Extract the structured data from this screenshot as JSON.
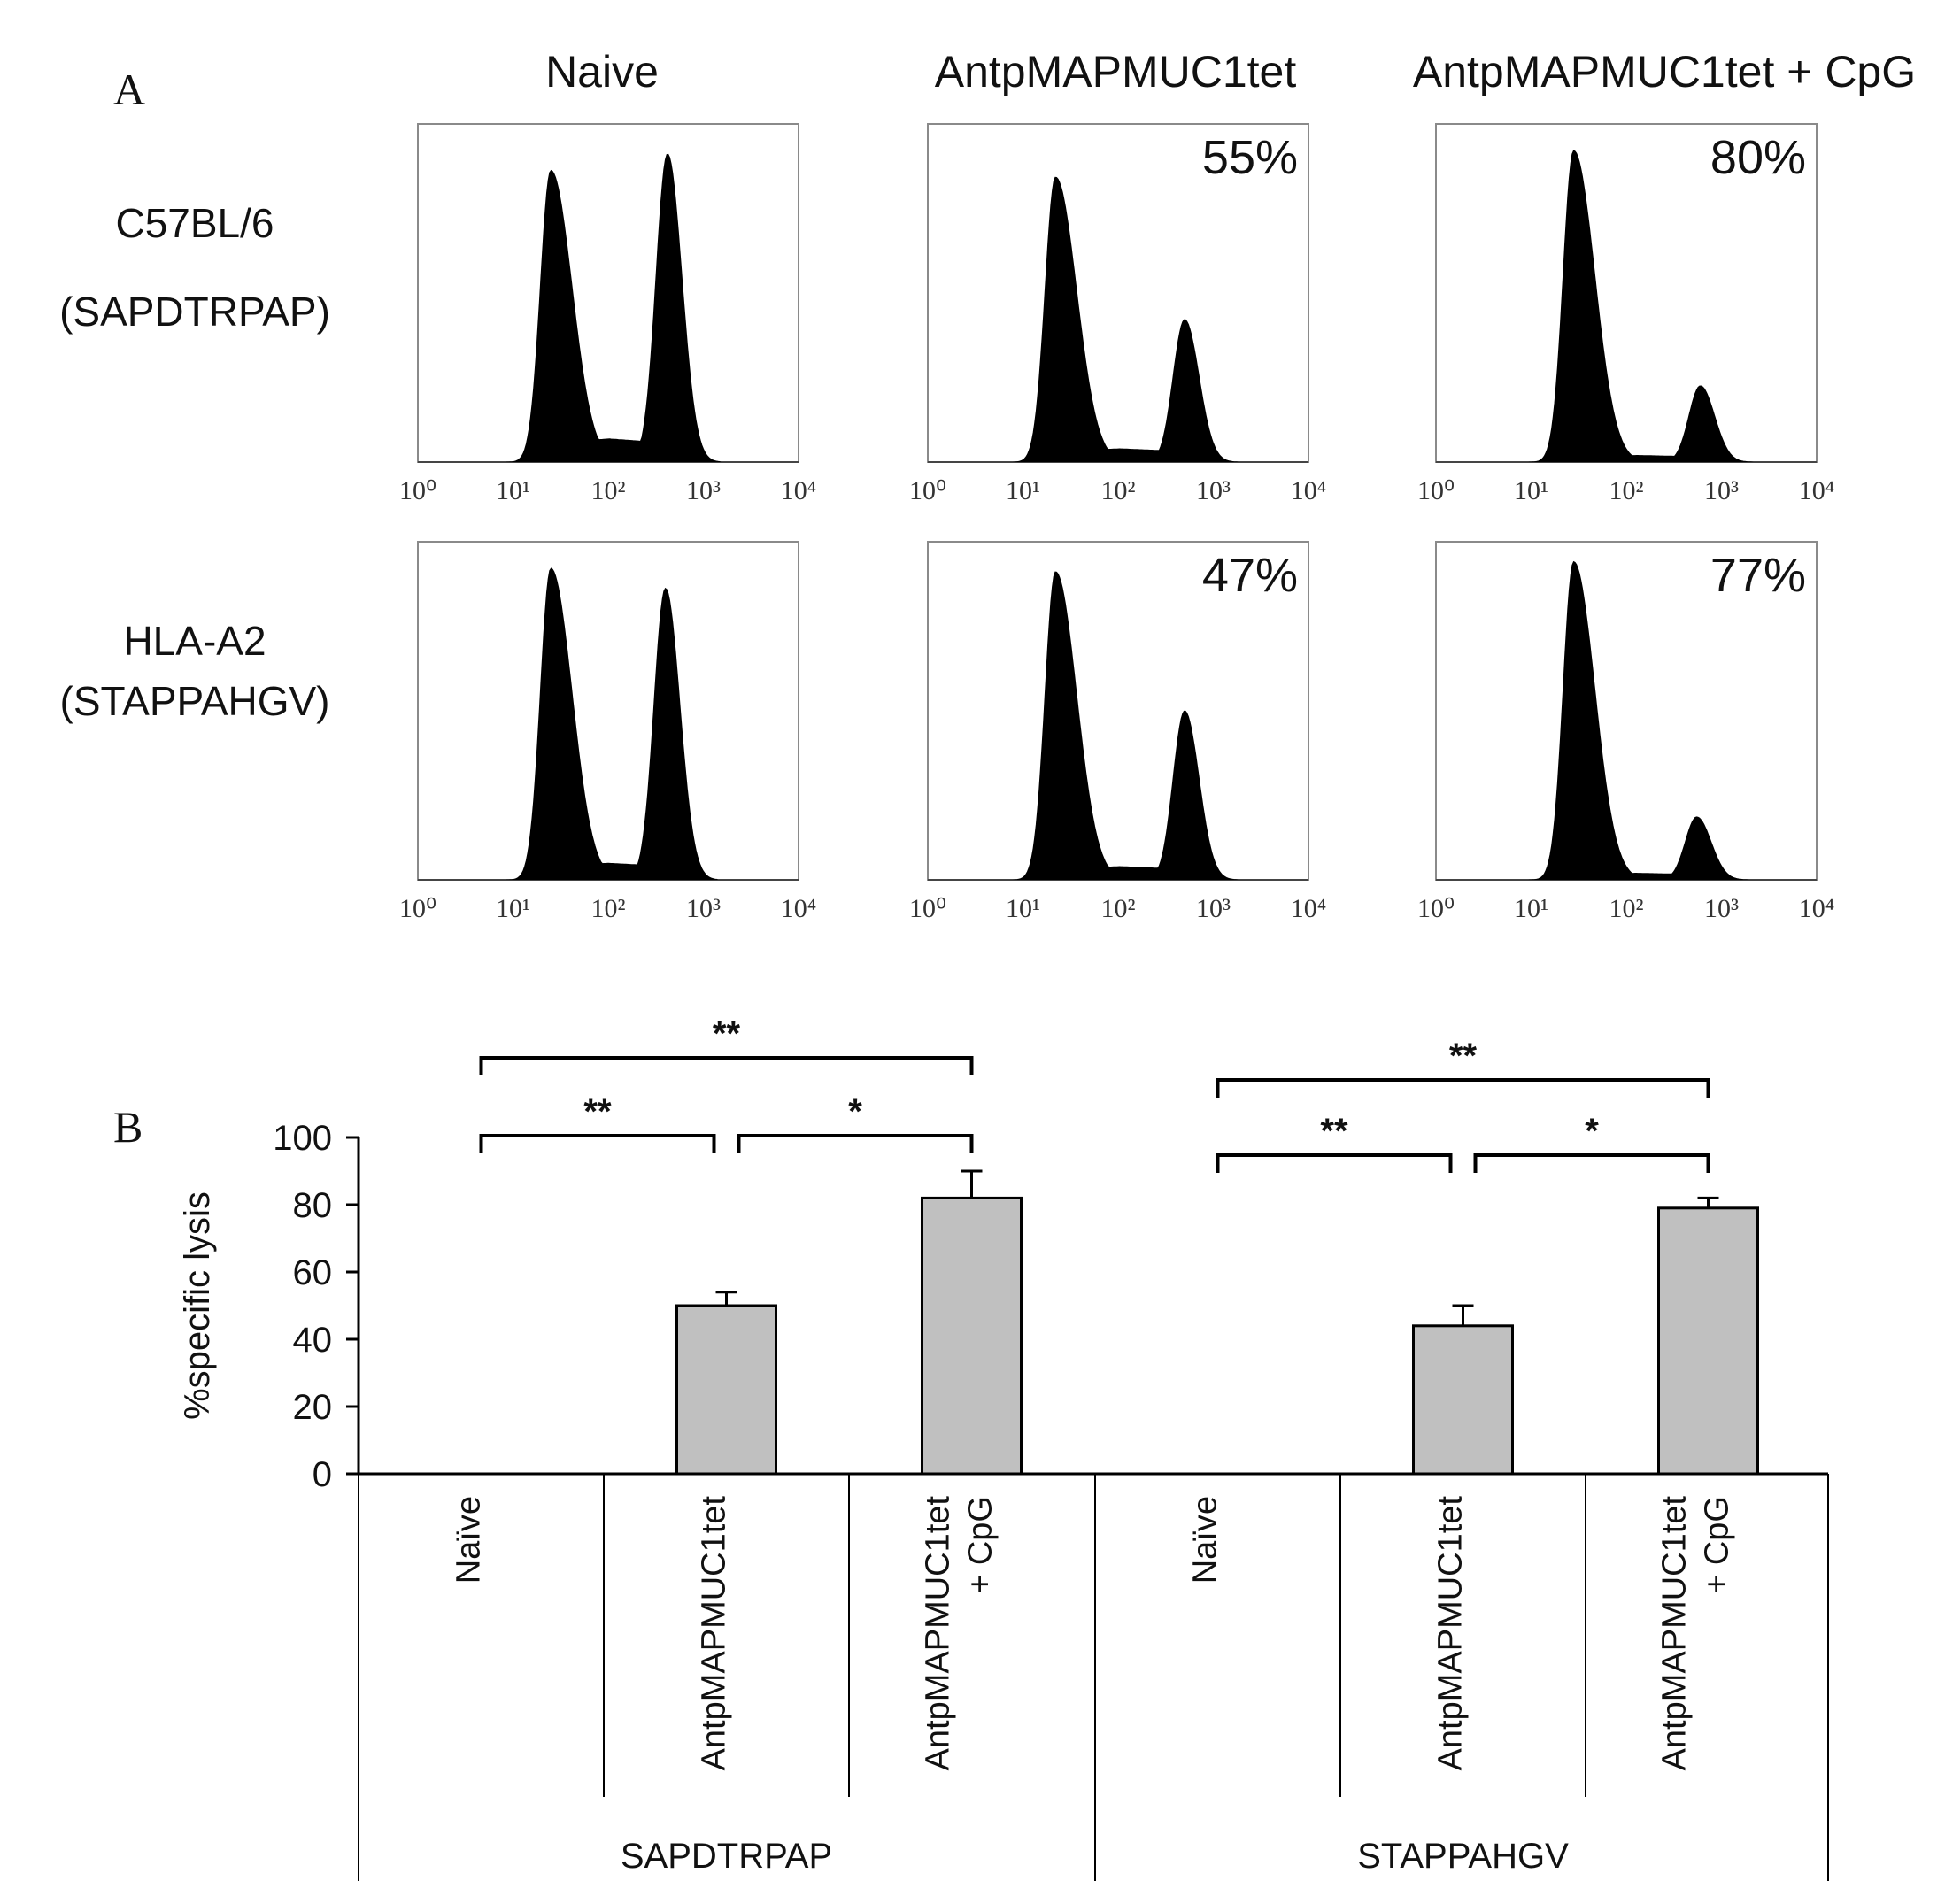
{
  "panel_a": {
    "label": "A",
    "column_titles": [
      "Naive",
      "AntpMAPMUC1tet",
      "AntpMAPMUC1tet + CpG"
    ],
    "row_titles": [
      [
        "C57BL/6",
        "(SAPDTRPAP)"
      ],
      [
        "HLA-A2",
        "(STAPPAHGV)"
      ]
    ],
    "axis_tick_labels": [
      "10⁰",
      "10¹",
      "10²",
      "10³",
      "10⁴"
    ],
    "percent_labels": [
      [
        "",
        "55%",
        "80%"
      ],
      [
        "",
        "47%",
        "77%"
      ]
    ]
  },
  "panel_b": {
    "label": "B",
    "significance": {
      "double": "**",
      "single": "*"
    }
  },
  "chart_data": [
    {
      "type": "area",
      "description_scale": "log",
      "xlim": [
        1,
        10000
      ],
      "x_ticks": [
        "10⁰",
        "10¹",
        "10²",
        "10³",
        "10⁴"
      ],
      "panels": [
        {
          "row": "C57BL/6 (SAPDTRPAP)",
          "column": "Naive",
          "label": "",
          "peaks": [
            {
              "x": 25,
              "height": 0.88
            },
            {
              "x": 420,
              "height": 0.93
            }
          ],
          "valley": 0.07
        },
        {
          "row": "C57BL/6 (SAPDTRPAP)",
          "column": "AntpMAPMUC1tet",
          "label": "55%",
          "peaks": [
            {
              "x": 22,
              "height": 0.86
            },
            {
              "x": 500,
              "height": 0.43
            }
          ],
          "valley": 0.04
        },
        {
          "row": "C57BL/6 (SAPDTRPAP)",
          "column": "AntpMAPMUC1tet + CpG",
          "label": "80%",
          "peaks": [
            {
              "x": 28,
              "height": 0.94
            },
            {
              "x": 600,
              "height": 0.23
            }
          ],
          "valley": 0.02
        },
        {
          "row": "HLA-A2 (STAPPAHGV)",
          "column": "Naive",
          "label": "",
          "peaks": [
            {
              "x": 25,
              "height": 0.94
            },
            {
              "x": 400,
              "height": 0.88
            }
          ],
          "valley": 0.05
        },
        {
          "row": "HLA-A2 (STAPPAHGV)",
          "column": "AntpMAPMUC1tet",
          "label": "47%",
          "peaks": [
            {
              "x": 22,
              "height": 0.93
            },
            {
              "x": 500,
              "height": 0.51
            }
          ],
          "valley": 0.04
        },
        {
          "row": "HLA-A2 (STAPPAHGV)",
          "column": "AntpMAPMUC1tet + CpG",
          "label": "77%",
          "peaks": [
            {
              "x": 28,
              "height": 0.96
            },
            {
              "x": 550,
              "height": 0.19
            }
          ],
          "valley": 0.02
        }
      ]
    },
    {
      "type": "bar",
      "ylabel": "%specific lysis",
      "ylim": [
        0,
        100
      ],
      "y_ticks": [
        0,
        20,
        40,
        60,
        80,
        100
      ],
      "groups": [
        {
          "name": "SAPDTRPAP",
          "categories": [
            [
              "Naïve"
            ],
            [
              "AntpMAPMUC1tet"
            ],
            [
              "AntpMAPMUC1tet",
              "+ CpG"
            ]
          ],
          "values": [
            0,
            50,
            82
          ],
          "errors": [
            0,
            4,
            8
          ]
        },
        {
          "name": "STAPPAHGV",
          "categories": [
            [
              "Naïve"
            ],
            [
              "AntpMAPMUC1tet"
            ],
            [
              "AntpMAPMUC1tet",
              "+ CpG"
            ]
          ],
          "values": [
            0,
            44,
            79
          ],
          "errors": [
            0,
            6,
            3
          ]
        }
      ],
      "comparisons": [
        {
          "group": 0,
          "from": 0,
          "to": 2,
          "label": "**",
          "level": 2
        },
        {
          "group": 0,
          "from": 0,
          "to": 1,
          "label": "**",
          "level": 1
        },
        {
          "group": 0,
          "from": 1,
          "to": 2,
          "label": "*",
          "level": 1
        },
        {
          "group": 1,
          "from": 0,
          "to": 2,
          "label": "**",
          "level": 2
        },
        {
          "group": 1,
          "from": 0,
          "to": 1,
          "label": "**",
          "level": 1
        },
        {
          "group": 1,
          "from": 1,
          "to": 2,
          "label": "*",
          "level": 1
        }
      ]
    }
  ]
}
